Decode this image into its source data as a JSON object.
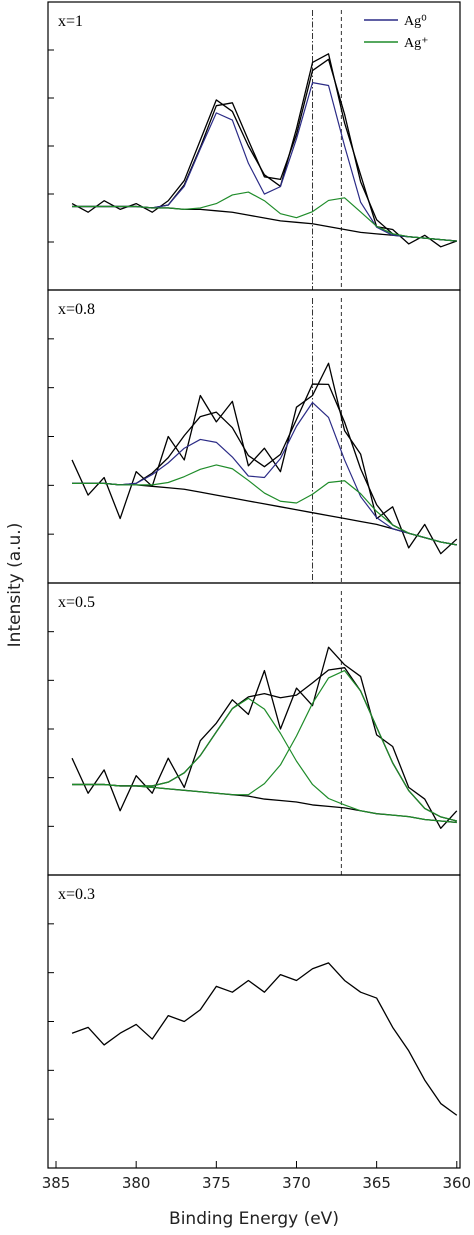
{
  "chart_data": [
    {
      "type": "line",
      "annotation": "x=1",
      "legend": "upper right",
      "xlim": [
        385.5,
        359.8
      ],
      "ylim": [
        0,
        100
      ],
      "x": [
        384,
        383,
        382,
        381,
        380,
        379,
        378,
        377,
        376,
        375,
        374,
        373,
        372,
        371,
        370,
        369,
        368,
        367,
        366,
        365,
        364,
        363,
        362,
        361,
        360
      ],
      "vlines": [
        {
          "x": 369,
          "style": "dashdot"
        },
        {
          "x": 367.2,
          "style": "dashed"
        }
      ],
      "series": [
        {
          "color": "#000000",
          "width": 1.3,
          "values": [
            30,
            27,
            31,
            28,
            30,
            27,
            31,
            38,
            52,
            66,
            62,
            50,
            40,
            36,
            56,
            79,
            82,
            58,
            40,
            22,
            21,
            16,
            19,
            15,
            17
          ]
        },
        {
          "color": "#000000",
          "width": 1.3,
          "values": [
            29,
            29,
            29,
            29,
            29,
            28.5,
            29.5,
            36.5,
            49.5,
            64,
            65,
            52,
            39.3,
            38.4,
            54,
            76.2,
            80.1,
            61,
            37.6,
            24.4,
            19.5,
            18.5,
            18,
            17.5,
            17
          ]
        },
        {
          "color": "#000000",
          "width": 1.3,
          "values": [
            29,
            29,
            29,
            29,
            29,
            28.5,
            28.5,
            28,
            28,
            27.5,
            27,
            26,
            25,
            24,
            23.5,
            23,
            22,
            21,
            20,
            19.5,
            19,
            18.5,
            18,
            17.5,
            17
          ]
        },
        {
          "name": "Ag⁰",
          "color": "#2b2b86",
          "width": 1.2,
          "values": [
            29,
            29,
            29,
            29,
            29,
            28.5,
            29.5,
            36,
            49,
            61.5,
            59,
            44,
            33.3,
            35.9,
            52.5,
            72,
            71,
            50,
            30.5,
            21.8,
            19,
            18.5,
            18,
            17.5,
            17
          ]
        },
        {
          "name": "Ag⁺",
          "color": "#1f8c2a",
          "width": 1.2,
          "values": [
            29,
            29,
            29,
            29,
            29,
            28.5,
            28.5,
            28,
            28.5,
            30,
            33,
            34,
            31,
            26.5,
            25.1,
            27.2,
            31.1,
            32,
            27.1,
            22.1,
            19.5,
            18.5,
            18,
            17.5,
            17
          ]
        }
      ]
    },
    {
      "type": "line",
      "annotation": "x=0.8",
      "xlim": [
        385.5,
        359.8
      ],
      "ylim": [
        0,
        100
      ],
      "x": [
        384,
        383,
        382,
        381,
        380,
        379,
        378,
        377,
        376,
        375,
        374,
        373,
        372,
        371,
        370,
        369,
        368,
        367,
        366,
        365,
        364,
        363,
        362,
        361,
        360
      ],
      "vlines": [
        {
          "x": 369,
          "style": "dashdot"
        },
        {
          "x": 367.2,
          "style": "dashed"
        }
      ],
      "series": [
        {
          "color": "#000000",
          "width": 1.3,
          "values": [
            42,
            30,
            36,
            22,
            38,
            33,
            50,
            42,
            64,
            55,
            62,
            40,
            46,
            38,
            60,
            64,
            75,
            52,
            44,
            22,
            26,
            12,
            20,
            10,
            15
          ]
        },
        {
          "color": "#000000",
          "width": 1.3,
          "values": [
            34,
            34,
            34,
            33.5,
            34,
            37.5,
            42.8,
            50.3,
            56.8,
            58.3,
            53,
            43.5,
            39.7,
            43.9,
            55.8,
            67.9,
            67.8,
            54.9,
            39,
            26.7,
            19.8,
            17,
            15.5,
            14,
            13
          ]
        },
        {
          "color": "#000000",
          "width": 1.3,
          "values": [
            34,
            34,
            34,
            33.5,
            33.5,
            33,
            32.5,
            32,
            31,
            30,
            29,
            28,
            27,
            26,
            25,
            24,
            23,
            22,
            21,
            20,
            18.5,
            17,
            15.5,
            14,
            13
          ]
        },
        {
          "color": "#2b2b86",
          "width": 1.2,
          "values": [
            34,
            34,
            34,
            33.5,
            34,
            37,
            41,
            46,
            49,
            48,
            43,
            36.5,
            36,
            42.5,
            53.5,
            61.6,
            56.5,
            42,
            29.5,
            22.3,
            18.5,
            17,
            15.5,
            14,
            13
          ]
        },
        {
          "color": "#1f8c2a",
          "width": 1.2,
          "values": [
            34,
            34,
            34,
            33.5,
            33.5,
            33.5,
            34.3,
            36.3,
            38.8,
            40.3,
            39,
            35,
            30.7,
            27.9,
            27.3,
            30.3,
            34.3,
            34.9,
            30.5,
            24.4,
            19.8,
            17,
            15.5,
            14,
            13
          ]
        }
      ]
    },
    {
      "type": "line",
      "annotation": "x=0.5",
      "xlim": [
        385.5,
        359.8
      ],
      "ylim": [
        0,
        100
      ],
      "x": [
        384,
        383,
        382,
        381,
        380,
        379,
        378,
        377,
        376,
        375,
        374,
        373,
        372,
        371,
        370,
        369,
        368,
        367,
        366,
        365,
        364,
        363,
        362,
        361,
        360
      ],
      "vlines": [
        {
          "x": 367.2,
          "style": "dashed"
        }
      ],
      "series": [
        {
          "color": "#000000",
          "width": 1.3,
          "values": [
            40,
            28,
            36,
            22,
            34,
            28,
            40,
            30,
            46,
            52,
            60,
            55,
            70,
            50,
            64,
            58,
            78,
            72,
            68,
            48,
            44,
            30,
            26,
            16,
            22
          ]
        },
        {
          "color": "#000000",
          "width": 1.3,
          "values": [
            31,
            31,
            31,
            30.5,
            30.5,
            30.5,
            31.8,
            35,
            40.9,
            49,
            57,
            61,
            62.1,
            60.7,
            61.6,
            65.8,
            70.2,
            71,
            63,
            50.6,
            38.4,
            28.9,
            22.8,
            19.9,
            18.5
          ]
        },
        {
          "color": "#000000",
          "width": 1.3,
          "values": [
            31,
            31,
            31,
            30.5,
            30.5,
            30,
            29.5,
            29,
            28.5,
            28,
            27.5,
            27,
            26,
            25.5,
            25,
            24,
            23.5,
            23,
            22,
            21,
            20.5,
            20,
            19,
            18.5,
            18
          ]
        },
        {
          "color": "#1f8c2a",
          "width": 1.2,
          "values": [
            31,
            31,
            31,
            30.5,
            30.5,
            30.5,
            31.8,
            35,
            40.9,
            49,
            57,
            60.5,
            56.8,
            48.5,
            39,
            31,
            26.2,
            24,
            22,
            21,
            20.5,
            20,
            19,
            18.5,
            18
          ]
        },
        {
          "color": "#1f8c2a",
          "width": 1.2,
          "values": [
            31,
            31,
            31,
            30.5,
            30.5,
            30,
            29.5,
            29,
            28.5,
            28,
            27.5,
            27.5,
            31.3,
            37.7,
            47.6,
            58.8,
            67.5,
            70,
            63,
            50.6,
            38.4,
            28.9,
            22.8,
            19.9,
            18.5
          ]
        }
      ]
    },
    {
      "type": "line",
      "annotation": "x=0.3",
      "xlabel": "Binding Energy (eV)",
      "ylabel": "Intensity (a.u.)",
      "xlim": [
        385.5,
        359.8
      ],
      "ylim": [
        0,
        100
      ],
      "xticks": [
        385,
        380,
        375,
        370,
        365,
        360
      ],
      "x": [
        384,
        383,
        382,
        381,
        380,
        379,
        378,
        377,
        376,
        375,
        374,
        373,
        372,
        371,
        370,
        369,
        368,
        367,
        366,
        365,
        364,
        363,
        362,
        361,
        360
      ],
      "series": [
        {
          "color": "#000000",
          "width": 1.3,
          "values": [
            46,
            48,
            42,
            46,
            49,
            44,
            52,
            50,
            54,
            62,
            60,
            64,
            60,
            66,
            64,
            68,
            70,
            64,
            60,
            58,
            48,
            40,
            30,
            22,
            18
          ]
        }
      ]
    }
  ]
}
